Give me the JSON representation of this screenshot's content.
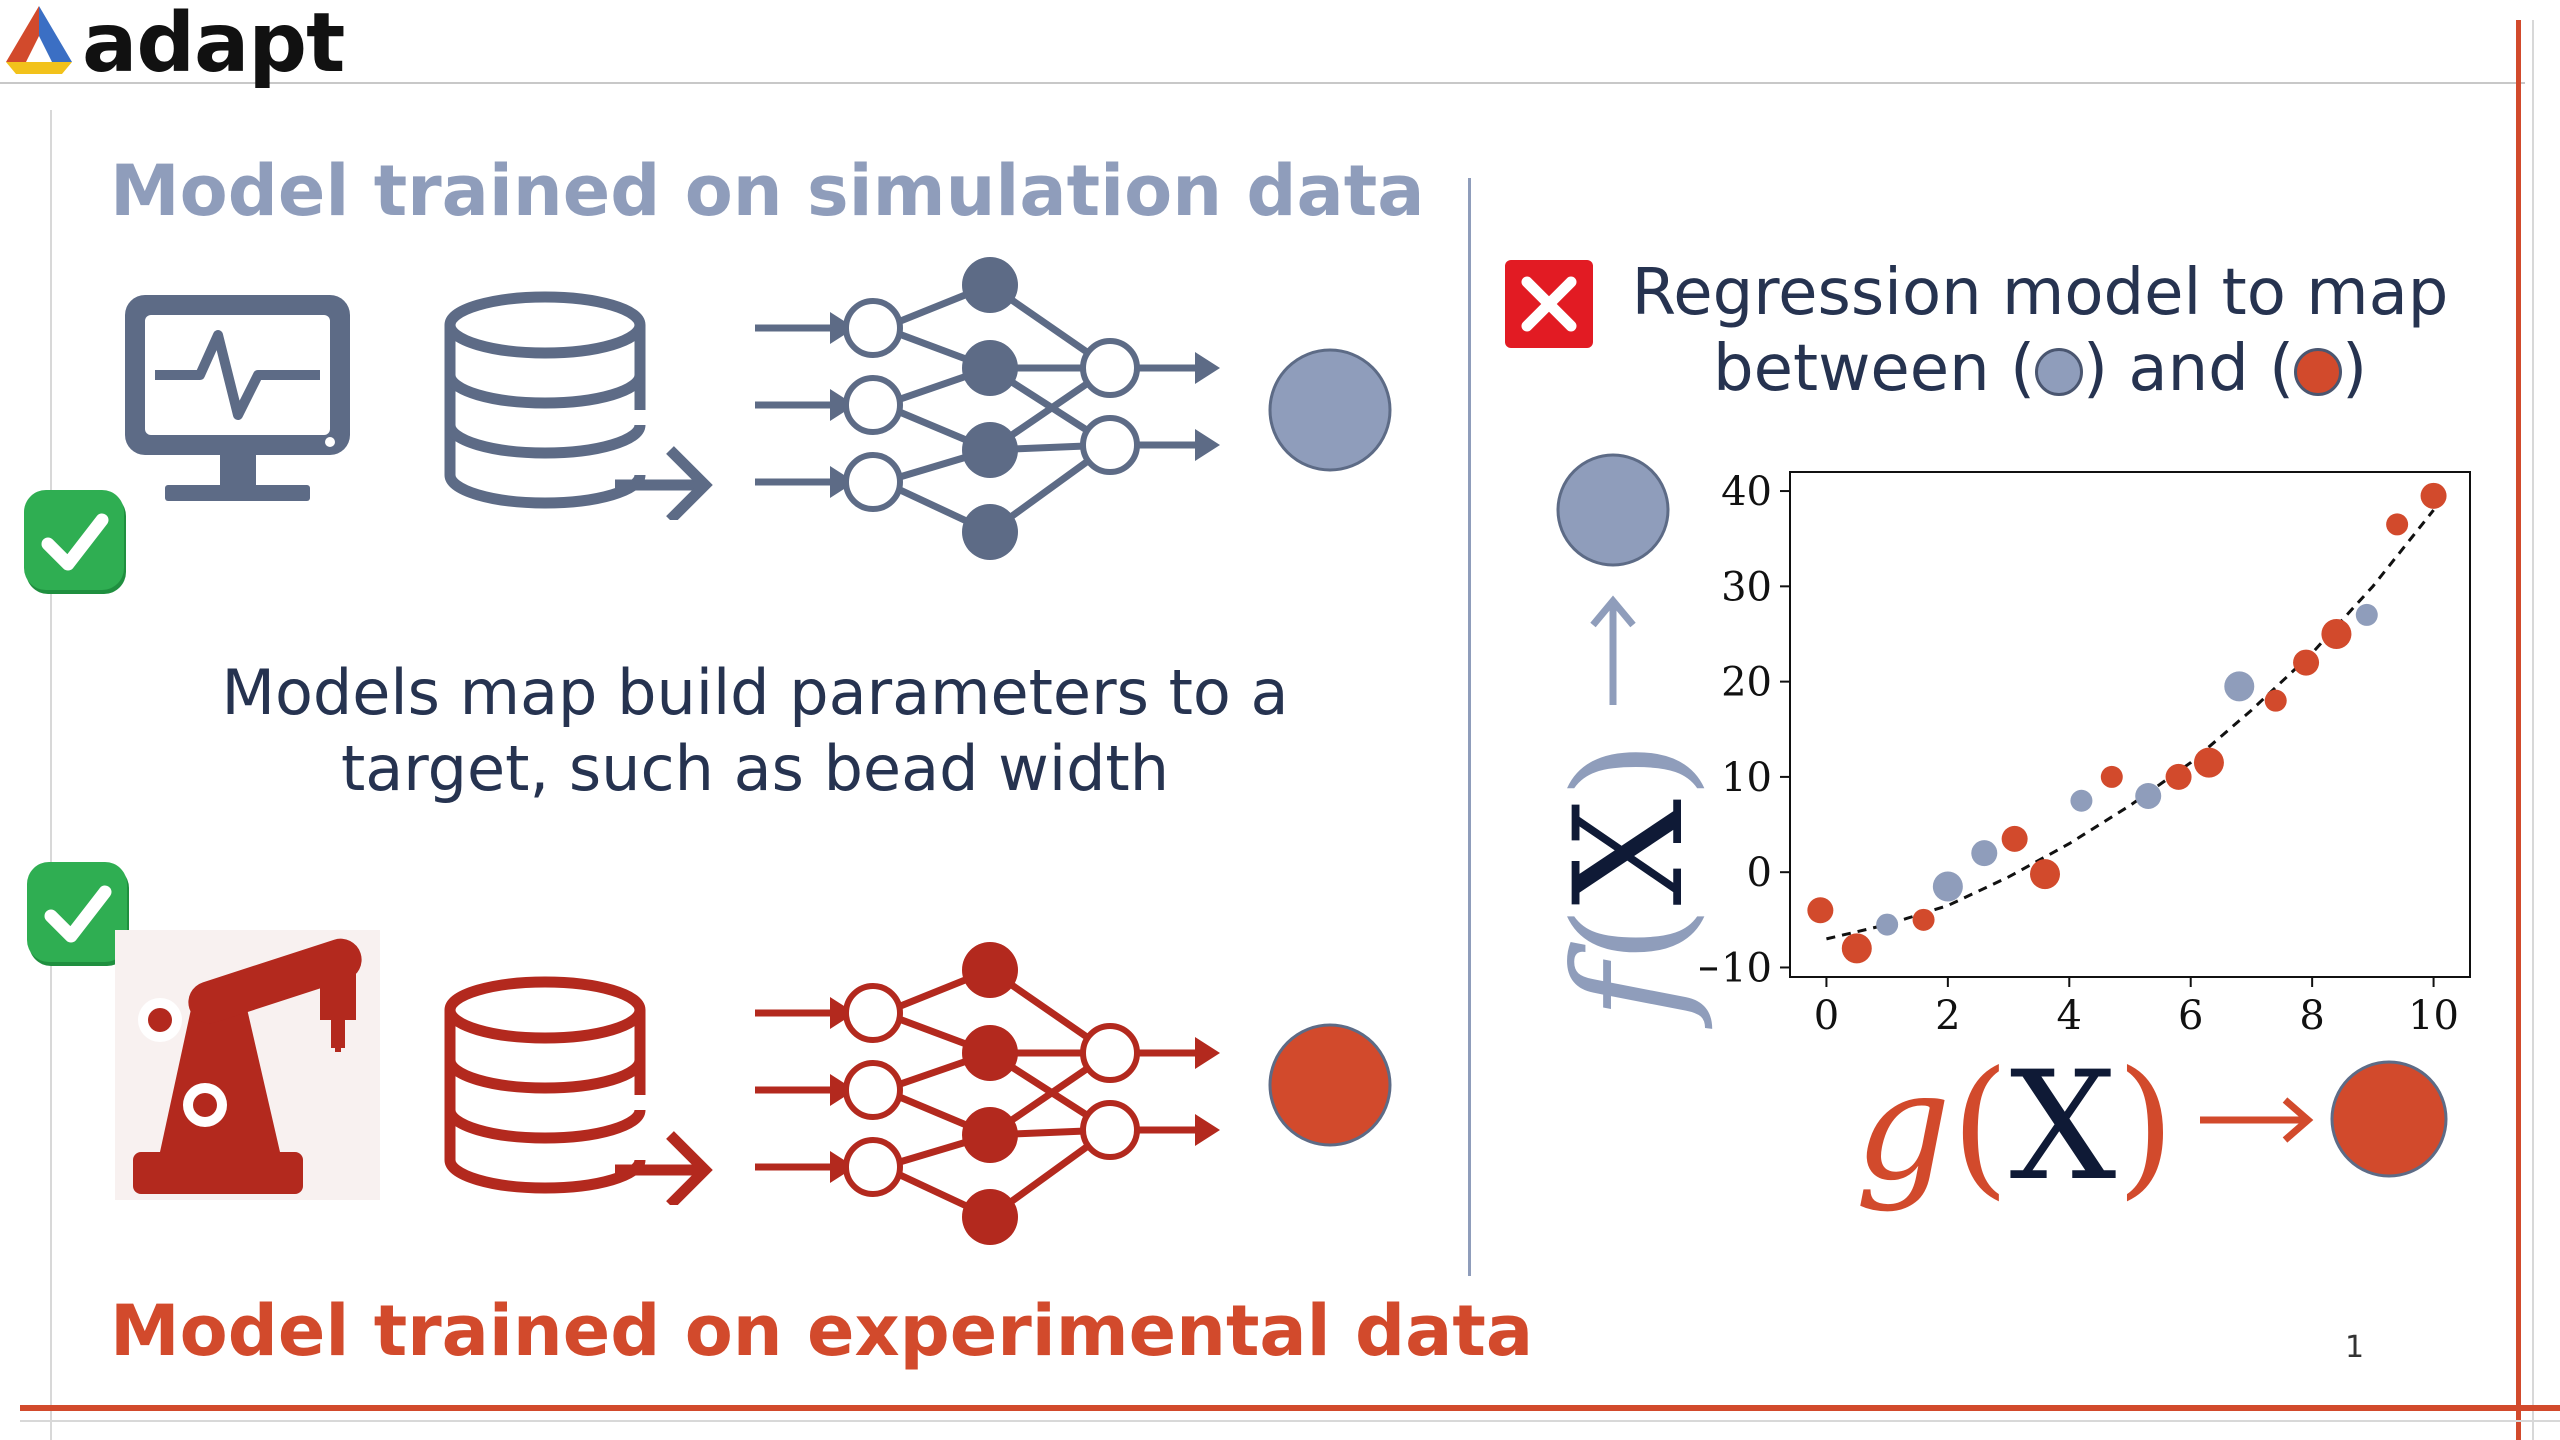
{
  "brand": {
    "name": "adapt"
  },
  "left": {
    "sim_heading": "Model trained on simulation data",
    "exp_heading": "Model trained on experimental data",
    "middle_text": "Models map build parameters to a target, such as bead width"
  },
  "right": {
    "title_line1": "Regression model to map",
    "title_between": "between (",
    "title_and": ") and (",
    "title_end": ")",
    "f_label": "f",
    "g_label": "g",
    "x_symbol": "X"
  },
  "page_number": "1",
  "colors": {
    "sim": "#8f9dbb",
    "exp": "#d24a2c",
    "dark": "#263350",
    "icon_slate": "#5d6b86",
    "icon_red": "#b3291e",
    "check_green": "#2fae52",
    "cross_red": "#e21b23"
  },
  "icons": [
    "adapt-logo-icon",
    "monitor-pulse-icon",
    "database-icon",
    "neural-network-icon",
    "robot-arm-icon",
    "check-icon",
    "cross-icon"
  ],
  "chart_data": {
    "type": "scatter",
    "x_ticks": [
      0,
      2,
      4,
      6,
      8,
      10
    ],
    "y_ticks": [
      -10,
      0,
      10,
      20,
      30,
      40
    ],
    "xlim": [
      -0.6,
      10.6
    ],
    "ylim": [
      -11,
      42
    ],
    "tick_labels": {
      "x": [
        "0",
        "2",
        "4",
        "6",
        "8",
        "10"
      ],
      "y": [
        "−10",
        "0",
        "10",
        "20",
        "30",
        "40"
      ]
    },
    "series": [
      {
        "color": "#8f9dbb",
        "x": [
          1.0,
          2.6,
          2.0,
          4.2,
          5.3,
          6.8,
          8.9
        ],
        "y": [
          -5.5,
          2,
          -1.5,
          7.5,
          8,
          19.5,
          27
        ]
      },
      {
        "color": "#d24a2c",
        "x": [
          -0.1,
          0.5,
          1.6,
          3.1,
          3.6,
          4.7,
          5.8,
          6.3,
          7.4,
          7.9,
          8.4,
          9.4,
          10.0
        ],
        "y": [
          -4,
          -8,
          -5,
          3.5,
          -0.2,
          10,
          10,
          11.5,
          18,
          22,
          25,
          36.5,
          39.5
        ]
      }
    ],
    "trend": {
      "style": "dashed",
      "color": "#111111",
      "x": [
        0,
        1,
        2,
        3,
        4,
        5,
        6,
        7,
        8,
        9,
        10
      ],
      "y": [
        -7,
        -5.5,
        -3.5,
        -0.5,
        3,
        7,
        11.5,
        17,
        23,
        30,
        38
      ]
    }
  }
}
